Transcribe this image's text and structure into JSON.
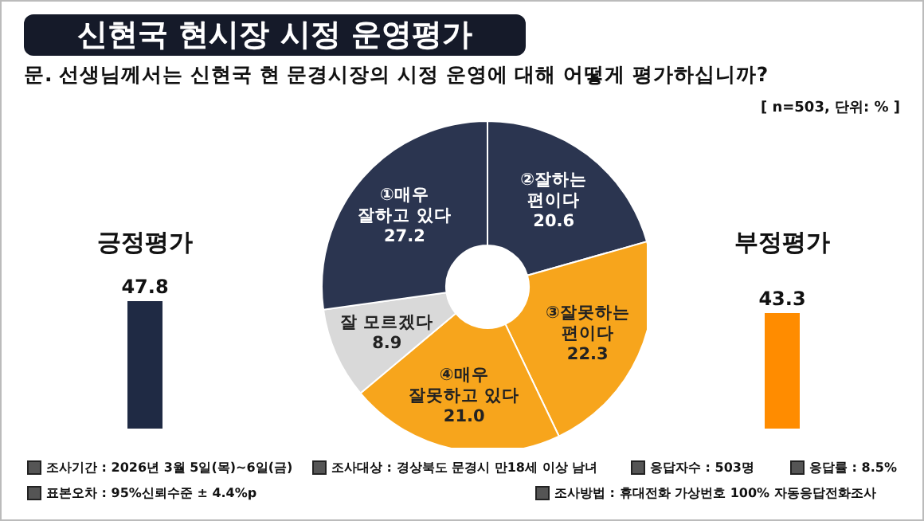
{
  "chart_data": [
    {
      "type": "donut",
      "title": "신현국 현시장 시정 운영평가",
      "subtitle": "문. 선생님께서는 신현국 현 문경시장의 시정 운영에 대해 어떻게 평가하십니까?",
      "categories": [
        "②잘하는 편이다",
        "③잘못하는 편이다",
        "④매우 잘못하고 있다",
        "잘 모르겠다",
        "①매우 잘하고 있다"
      ],
      "values": [
        20.6,
        22.3,
        21.0,
        8.9,
        27.2
      ],
      "colors": [
        "#2b3550",
        "#f7a51c",
        "#f7a51c",
        "#d9d9d9",
        "#2b3550"
      ],
      "value_labels": [
        "20.6",
        "22.3",
        "21.0",
        "8.9",
        "27.2"
      ],
      "annotations": [
        "[ n=503, 단위: % ]",
        "조사기간 : 2026년 3월 5일(목)~6일(금)",
        "조사대상 : 경상북도 문경시 만18세 이상 남녀",
        "응답자수 : 503명",
        "응답률 : 8.5%",
        "표본오차 : 95%신뢰수준 ± 4.4%p",
        "조사방법 : 휴대전화 가상번호 100% 자동응답전화조사"
      ]
    },
    {
      "type": "bar",
      "categories": [
        "긍정평가",
        "부정평가"
      ],
      "values": [
        47.8,
        43.3
      ],
      "colors": [
        "#1f2a44",
        "#ff8c00"
      ],
      "data_labels": true
    }
  ]
}
